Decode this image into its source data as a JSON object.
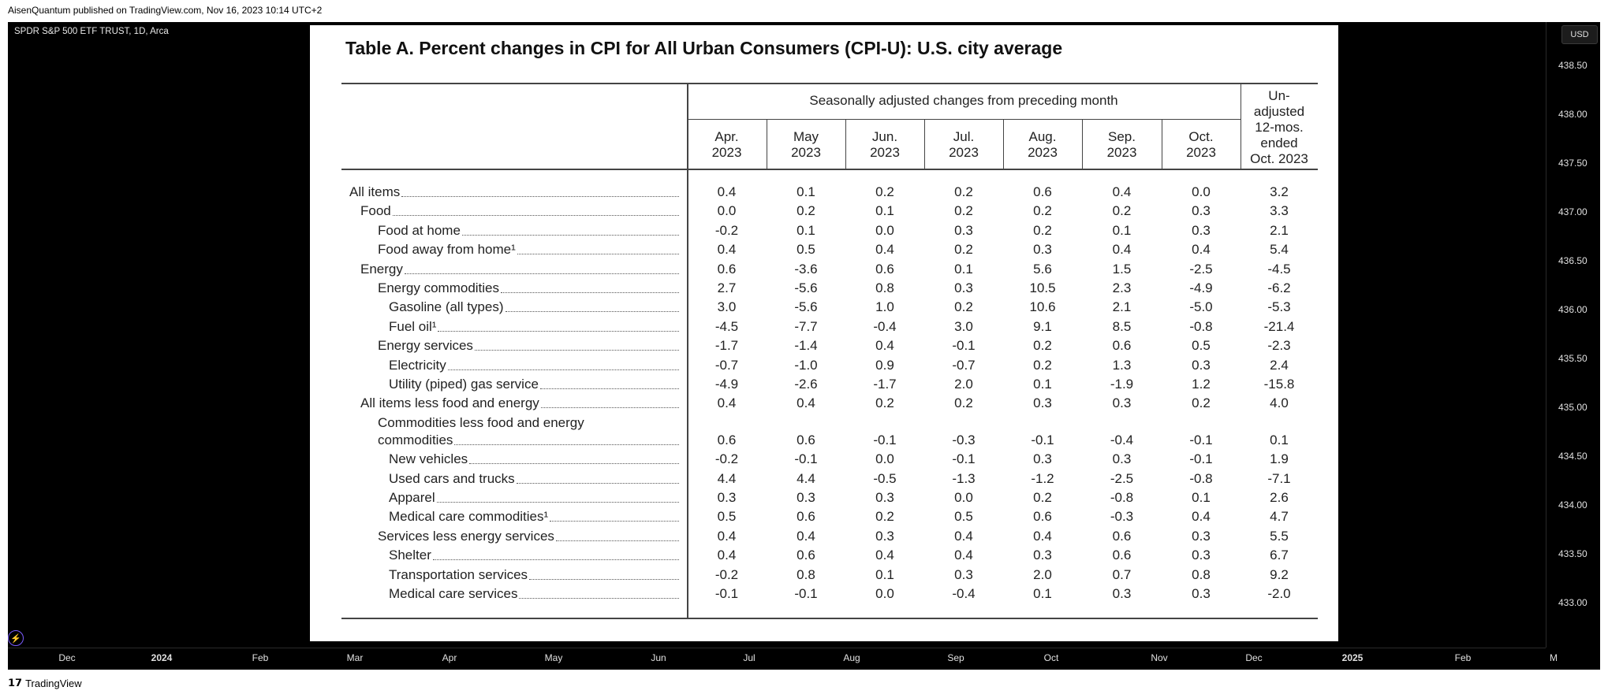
{
  "topbar": "AisenQuantum published on TradingView.com, Nov 16, 2023 10:14 UTC+2",
  "symbol": "SPDR S&P 500 ETF TRUST, 1D, Arca",
  "currency": "USD",
  "brand": "TradingView",
  "y_axis": [
    "438.50",
    "438.00",
    "437.50",
    "437.00",
    "436.50",
    "436.00",
    "435.50",
    "435.00",
    "434.50",
    "434.00",
    "433.50",
    "433.00"
  ],
  "x_axis": [
    {
      "label": "Dec",
      "bold": false
    },
    {
      "label": "2024",
      "bold": true
    },
    {
      "label": "Feb",
      "bold": false
    },
    {
      "label": "Mar",
      "bold": false
    },
    {
      "label": "Apr",
      "bold": false
    },
    {
      "label": "May",
      "bold": false
    },
    {
      "label": "Jun",
      "bold": false
    },
    {
      "label": "Jul",
      "bold": false
    },
    {
      "label": "Aug",
      "bold": false
    },
    {
      "label": "Sep",
      "bold": false
    },
    {
      "label": "Oct",
      "bold": false
    },
    {
      "label": "Nov",
      "bold": false
    },
    {
      "label": "Dec",
      "bold": false
    },
    {
      "label": "2025",
      "bold": true
    },
    {
      "label": "Feb",
      "bold": false
    },
    {
      "label": "M",
      "bold": false
    }
  ],
  "chart_data": {
    "type": "table",
    "title": "Table A. Percent changes in CPI for All Urban Consumers (CPI-U): U.S. city average",
    "group_header": "Seasonally adjusted changes from preceding month",
    "columns": [
      [
        "Apr.",
        "2023"
      ],
      [
        "May",
        "2023"
      ],
      [
        "Jun.",
        "2023"
      ],
      [
        "Jul.",
        "2023"
      ],
      [
        "Aug.",
        "2023"
      ],
      [
        "Sep.",
        "2023"
      ],
      [
        "Oct.",
        "2023"
      ],
      [
        "Un-",
        "adjusted",
        "12-mos.",
        "ended",
        "Oct. 2023"
      ]
    ],
    "rows": [
      {
        "label": "All items",
        "indent": 0,
        "values": [
          "0.4",
          "0.1",
          "0.2",
          "0.2",
          "0.6",
          "0.4",
          "0.0",
          "3.2"
        ]
      },
      {
        "label": "Food",
        "indent": 1,
        "values": [
          "0.0",
          "0.2",
          "0.1",
          "0.2",
          "0.2",
          "0.2",
          "0.3",
          "3.3"
        ]
      },
      {
        "label": "Food at home",
        "indent": 2,
        "values": [
          "-0.2",
          "0.1",
          "0.0",
          "0.3",
          "0.2",
          "0.1",
          "0.3",
          "2.1"
        ]
      },
      {
        "label": "Food away from home¹",
        "indent": 2,
        "values": [
          "0.4",
          "0.5",
          "0.4",
          "0.2",
          "0.3",
          "0.4",
          "0.4",
          "5.4"
        ]
      },
      {
        "label": "Energy",
        "indent": 1,
        "values": [
          "0.6",
          "-3.6",
          "0.6",
          "0.1",
          "5.6",
          "1.5",
          "-2.5",
          "-4.5"
        ]
      },
      {
        "label": "Energy commodities",
        "indent": 2,
        "values": [
          "2.7",
          "-5.6",
          "0.8",
          "0.3",
          "10.5",
          "2.3",
          "-4.9",
          "-6.2"
        ]
      },
      {
        "label": "Gasoline (all types)",
        "indent": 3,
        "values": [
          "3.0",
          "-5.6",
          "1.0",
          "0.2",
          "10.6",
          "2.1",
          "-5.0",
          "-5.3"
        ]
      },
      {
        "label": "Fuel oil¹",
        "indent": 3,
        "values": [
          "-4.5",
          "-7.7",
          "-0.4",
          "3.0",
          "9.1",
          "8.5",
          "-0.8",
          "-21.4"
        ]
      },
      {
        "label": "Energy services",
        "indent": 2,
        "values": [
          "-1.7",
          "-1.4",
          "0.4",
          "-0.1",
          "0.2",
          "0.6",
          "0.5",
          "-2.3"
        ]
      },
      {
        "label": "Electricity",
        "indent": 3,
        "values": [
          "-0.7",
          "-1.0",
          "0.9",
          "-0.7",
          "0.2",
          "1.3",
          "0.3",
          "2.4"
        ]
      },
      {
        "label": "Utility (piped) gas service",
        "indent": 3,
        "values": [
          "-4.9",
          "-2.6",
          "-1.7",
          "2.0",
          "0.1",
          "-1.9",
          "1.2",
          "-15.8"
        ]
      },
      {
        "label": "All items less food and energy",
        "indent": 1,
        "values": [
          "0.4",
          "0.4",
          "0.2",
          "0.2",
          "0.3",
          "0.3",
          "0.2",
          "4.0"
        ]
      },
      {
        "label": "Commodities less food and energy",
        "label2": "commodities",
        "indent": 2,
        "values": [
          "0.6",
          "0.6",
          "-0.1",
          "-0.3",
          "-0.1",
          "-0.4",
          "-0.1",
          "0.1"
        ]
      },
      {
        "label": "New vehicles",
        "indent": 3,
        "values": [
          "-0.2",
          "-0.1",
          "0.0",
          "-0.1",
          "0.3",
          "0.3",
          "-0.1",
          "1.9"
        ]
      },
      {
        "label": "Used cars and trucks",
        "indent": 3,
        "values": [
          "4.4",
          "4.4",
          "-0.5",
          "-1.3",
          "-1.2",
          "-2.5",
          "-0.8",
          "-7.1"
        ]
      },
      {
        "label": "Apparel",
        "indent": 3,
        "values": [
          "0.3",
          "0.3",
          "0.3",
          "0.0",
          "0.2",
          "-0.8",
          "0.1",
          "2.6"
        ]
      },
      {
        "label": "Medical care commodities¹",
        "indent": 3,
        "values": [
          "0.5",
          "0.6",
          "0.2",
          "0.5",
          "0.6",
          "-0.3",
          "0.4",
          "4.7"
        ]
      },
      {
        "label": "Services less energy services",
        "indent": 2,
        "values": [
          "0.4",
          "0.4",
          "0.3",
          "0.4",
          "0.4",
          "0.6",
          "0.3",
          "5.5"
        ]
      },
      {
        "label": "Shelter",
        "indent": 3,
        "values": [
          "0.4",
          "0.6",
          "0.4",
          "0.4",
          "0.3",
          "0.6",
          "0.3",
          "6.7"
        ]
      },
      {
        "label": "Transportation services",
        "indent": 3,
        "values": [
          "-0.2",
          "0.8",
          "0.1",
          "0.3",
          "2.0",
          "0.7",
          "0.8",
          "9.2"
        ]
      },
      {
        "label": "Medical care services",
        "indent": 3,
        "values": [
          "-0.1",
          "-0.1",
          "0.0",
          "-0.4",
          "0.1",
          "0.3",
          "0.3",
          "-2.0"
        ]
      }
    ]
  }
}
